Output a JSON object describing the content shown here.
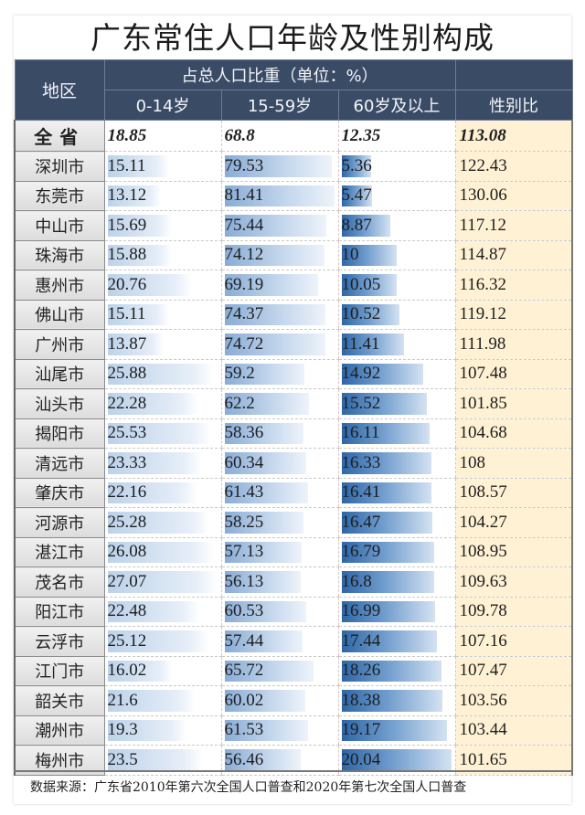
{
  "title": "广东常住人口年龄及性别构成",
  "header": {
    "region": "地区",
    "share_group": "占总人口比重（单位：%）",
    "col_0_14": "0-14岁",
    "col_15_59": "15-59岁",
    "col_60_plus": "60岁及以上",
    "col_sex_ratio": "性别比"
  },
  "colors": {
    "header_bg": "#3a4b66",
    "sex_ratio_bg": "#fff1d4",
    "bar_60_plus": "#2e66a6",
    "bar_15_59": "#89acd5",
    "bar_0_14": "#bcd2ea"
  },
  "total": {
    "name": "全省",
    "a0_14": "18.85",
    "a15_59": "68.8",
    "a60": "12.35",
    "sex_ratio": "113.08"
  },
  "rows": [
    {
      "name": "深圳市",
      "a0_14": "15.11",
      "a15_59": "79.53",
      "a60": "5.36",
      "sex_ratio": "122.43"
    },
    {
      "name": "东莞市",
      "a0_14": "13.12",
      "a15_59": "81.41",
      "a60": "5.47",
      "sex_ratio": "130.06"
    },
    {
      "name": "中山市",
      "a0_14": "15.69",
      "a15_59": "75.44",
      "a60": "8.87",
      "sex_ratio": "117.12"
    },
    {
      "name": "珠海市",
      "a0_14": "15.88",
      "a15_59": "74.12",
      "a60": "10",
      "sex_ratio": "114.87"
    },
    {
      "name": "惠州市",
      "a0_14": "20.76",
      "a15_59": "69.19",
      "a60": "10.05",
      "sex_ratio": "116.32"
    },
    {
      "name": "佛山市",
      "a0_14": "15.11",
      "a15_59": "74.37",
      "a60": "10.52",
      "sex_ratio": "119.12"
    },
    {
      "name": "广州市",
      "a0_14": "13.87",
      "a15_59": "74.72",
      "a60": "11.41",
      "sex_ratio": "111.98"
    },
    {
      "name": "汕尾市",
      "a0_14": "25.88",
      "a15_59": "59.2",
      "a60": "14.92",
      "sex_ratio": "107.48"
    },
    {
      "name": "汕头市",
      "a0_14": "22.28",
      "a15_59": "62.2",
      "a60": "15.52",
      "sex_ratio": "101.85"
    },
    {
      "name": "揭阳市",
      "a0_14": "25.53",
      "a15_59": "58.36",
      "a60": "16.11",
      "sex_ratio": "104.68"
    },
    {
      "name": "清远市",
      "a0_14": "23.33",
      "a15_59": "60.34",
      "a60": "16.33",
      "sex_ratio": "108"
    },
    {
      "name": "肇庆市",
      "a0_14": "22.16",
      "a15_59": "61.43",
      "a60": "16.41",
      "sex_ratio": "108.57"
    },
    {
      "name": "河源市",
      "a0_14": "25.28",
      "a15_59": "58.25",
      "a60": "16.47",
      "sex_ratio": "104.27"
    },
    {
      "name": "湛江市",
      "a0_14": "26.08",
      "a15_59": "57.13",
      "a60": "16.79",
      "sex_ratio": "108.95"
    },
    {
      "name": "茂名市",
      "a0_14": "27.07",
      "a15_59": "56.13",
      "a60": "16.8",
      "sex_ratio": "109.63"
    },
    {
      "name": "阳江市",
      "a0_14": "22.48",
      "a15_59": "60.53",
      "a60": "16.99",
      "sex_ratio": "109.78"
    },
    {
      "name": "云浮市",
      "a0_14": "25.12",
      "a15_59": "57.44",
      "a60": "17.44",
      "sex_ratio": "107.16"
    },
    {
      "name": "江门市",
      "a0_14": "16.02",
      "a15_59": "65.72",
      "a60": "18.26",
      "sex_ratio": "107.47"
    },
    {
      "name": "韶关市",
      "a0_14": "21.6",
      "a15_59": "60.02",
      "a60": "18.38",
      "sex_ratio": "103.56"
    },
    {
      "name": "潮州市",
      "a0_14": "19.3",
      "a15_59": "61.53",
      "a60": "19.17",
      "sex_ratio": "103.44"
    },
    {
      "name": "梅州市",
      "a0_14": "23.5",
      "a15_59": "56.46",
      "a60": "20.04",
      "sex_ratio": "101.65"
    }
  ],
  "footer": "数据来源：广东省2010年第六次全国人口普查和2020年第七次全国人口普查",
  "chart_data": {
    "type": "table",
    "title": "广东常住人口年龄及性别构成",
    "columns": [
      "地区",
      "0-14岁",
      "15-59岁",
      "60岁及以上",
      "性别比"
    ],
    "unit": "占总人口比重（单位：%）",
    "categories": [
      "全省",
      "深圳市",
      "东莞市",
      "中山市",
      "珠海市",
      "惠州市",
      "佛山市",
      "广州市",
      "汕尾市",
      "汕头市",
      "揭阳市",
      "清远市",
      "肇庆市",
      "河源市",
      "湛江市",
      "茂名市",
      "阳江市",
      "云浮市",
      "江门市",
      "韶关市",
      "潮州市",
      "梅州市"
    ],
    "series": [
      {
        "name": "0-14岁",
        "values": [
          18.85,
          15.11,
          13.12,
          15.69,
          15.88,
          20.76,
          15.11,
          13.87,
          25.88,
          22.28,
          25.53,
          23.33,
          22.16,
          25.28,
          26.08,
          27.07,
          22.48,
          25.12,
          16.02,
          21.6,
          19.3,
          23.5
        ]
      },
      {
        "name": "15-59岁",
        "values": [
          68.8,
          79.53,
          81.41,
          75.44,
          74.12,
          69.19,
          74.37,
          74.72,
          59.2,
          62.2,
          58.36,
          60.34,
          61.43,
          58.25,
          57.13,
          56.13,
          60.53,
          57.44,
          65.72,
          60.02,
          61.53,
          56.46
        ]
      },
      {
        "name": "60岁及以上",
        "values": [
          12.35,
          5.36,
          5.47,
          8.87,
          10,
          10.05,
          10.52,
          11.41,
          14.92,
          15.52,
          16.11,
          16.33,
          16.41,
          16.47,
          16.79,
          16.8,
          16.99,
          17.44,
          18.26,
          18.38,
          19.17,
          20.04
        ]
      },
      {
        "name": "性别比",
        "values": [
          113.08,
          122.43,
          130.06,
          117.12,
          114.87,
          116.32,
          119.12,
          111.98,
          107.48,
          101.85,
          104.68,
          108,
          108.57,
          104.27,
          108.95,
          109.63,
          109.78,
          107.16,
          107.47,
          103.56,
          103.44,
          101.65
        ]
      }
    ],
    "source": "广东省2010年第六次全国人口普查和2020年第七次全国人口普查"
  }
}
